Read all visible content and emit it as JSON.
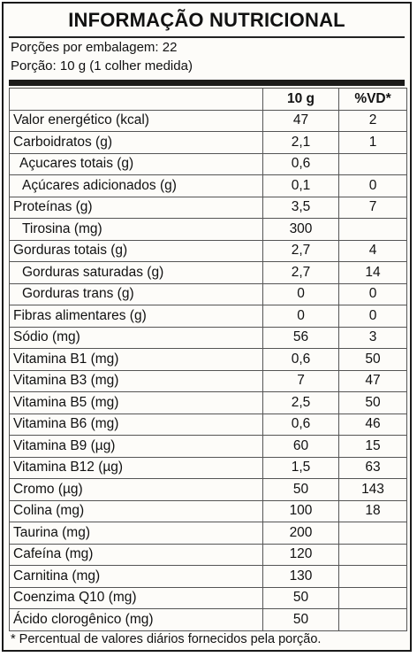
{
  "title": "INFORMAÇÃO NUTRICIONAL",
  "servings_per_package": "Porções por embalagem: 22",
  "serving_size": "Porção: 10 g (1 colher medida)",
  "columns": [
    "",
    "10 g",
    "%VD*"
  ],
  "rows": [
    {
      "name": "Valor energético (kcal)",
      "amount": "47",
      "dv": "2",
      "indent": 0
    },
    {
      "name": "Carboidratos (g)",
      "amount": "2,1",
      "dv": "1",
      "indent": 0
    },
    {
      "name": "Açucares totais (g)",
      "amount": "0,6",
      "dv": "",
      "indent": 1
    },
    {
      "name": "Açúcares adicionados (g)",
      "amount": "0,1",
      "dv": "0",
      "indent": 3
    },
    {
      "name": "Proteínas (g)",
      "amount": "3,5",
      "dv": "7",
      "indent": 0
    },
    {
      "name": "Tirosina (mg)",
      "amount": "300",
      "dv": "",
      "indent": 2
    },
    {
      "name": "Gorduras totais (g)",
      "amount": "2,7",
      "dv": "4",
      "indent": 0
    },
    {
      "name": "Gorduras saturadas (g)",
      "amount": "2,7",
      "dv": "14",
      "indent": 2
    },
    {
      "name": "Gorduras trans (g)",
      "amount": "0",
      "dv": "0",
      "indent": 2
    },
    {
      "name": "Fibras alimentares (g)",
      "amount": "0",
      "dv": "0",
      "indent": 0
    },
    {
      "name": "Sódio (mg)",
      "amount": "56",
      "dv": "3",
      "indent": 0
    },
    {
      "name": "Vitamina B1 (mg)",
      "amount": "0,6",
      "dv": "50",
      "indent": 0
    },
    {
      "name": "Vitamina B3 (mg)",
      "amount": "7",
      "dv": "47",
      "indent": 0
    },
    {
      "name": "Vitamina B5 (mg)",
      "amount": "2,5",
      "dv": "50",
      "indent": 0
    },
    {
      "name": "Vitamina B6 (mg)",
      "amount": "0,6",
      "dv": "46",
      "indent": 0
    },
    {
      "name": "Vitamina B9 (µg)",
      "amount": "60",
      "dv": "15",
      "indent": 0
    },
    {
      "name": "Vitamina B12 (µg)",
      "amount": "1,5",
      "dv": "63",
      "indent": 0
    },
    {
      "name": "Cromo (µg)",
      "amount": "50",
      "dv": "143",
      "indent": 0
    },
    {
      "name": "Colina (mg)",
      "amount": "100",
      "dv": "18",
      "indent": 0
    },
    {
      "name": "Taurina (mg)",
      "amount": "200",
      "dv": "",
      "indent": 0
    },
    {
      "name": "Cafeína (mg)",
      "amount": "120",
      "dv": "",
      "indent": 0
    },
    {
      "name": "Carnitina (mg)",
      "amount": "130",
      "dv": "",
      "indent": 0
    },
    {
      "name": "Coenzima Q10 (mg)",
      "amount": "50",
      "dv": "",
      "indent": 0
    },
    {
      "name": "Ácido clorogênico (mg)",
      "amount": "50",
      "dv": "",
      "indent": 0
    }
  ],
  "footnote": "* Percentual de valores diários fornecidos pela porção."
}
